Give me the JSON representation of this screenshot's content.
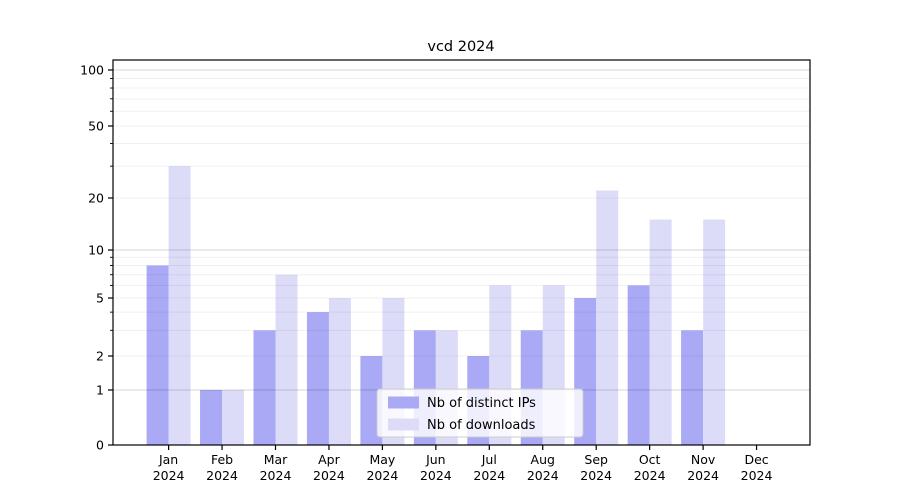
{
  "chart_data": {
    "type": "bar",
    "title": "vcd 2024",
    "categories": [
      {
        "line1": "Jan",
        "line2": "2024"
      },
      {
        "line1": "Feb",
        "line2": "2024"
      },
      {
        "line1": "Mar",
        "line2": "2024"
      },
      {
        "line1": "Apr",
        "line2": "2024"
      },
      {
        "line1": "May",
        "line2": "2024"
      },
      {
        "line1": "Jun",
        "line2": "2024"
      },
      {
        "line1": "Jul",
        "line2": "2024"
      },
      {
        "line1": "Aug",
        "line2": "2024"
      },
      {
        "line1": "Sep",
        "line2": "2024"
      },
      {
        "line1": "Oct",
        "line2": "2024"
      },
      {
        "line1": "Nov",
        "line2": "2024"
      },
      {
        "line1": "Dec",
        "line2": "2024"
      }
    ],
    "series": [
      {
        "name": "Nb of distinct IPs",
        "color": "#a9a9f6",
        "values": [
          8,
          1,
          3,
          4,
          2,
          3,
          2,
          3,
          5,
          6,
          3,
          0
        ]
      },
      {
        "name": "Nb of downloads",
        "color": "#dcdcf9",
        "values": [
          30,
          1,
          7,
          5,
          5,
          3,
          6,
          6,
          22,
          15,
          15,
          0
        ]
      }
    ],
    "yscale": "log above 1, linear 0-1",
    "yticks": [
      0,
      1,
      2,
      5,
      10,
      20,
      50,
      100
    ],
    "minor_gridlines": [
      2,
      3,
      4,
      5,
      6,
      7,
      8,
      9,
      20,
      30,
      40,
      50,
      60,
      70,
      80,
      90
    ],
    "major_gridlines": [
      1,
      10,
      100
    ],
    "ylim": [
      0,
      114
    ],
    "grid": true,
    "legend_position": "lower center",
    "colors": {
      "grid_major": "rgba(0,0,0,0.16)",
      "grid_minor": "rgba(0,0,0,0.06)",
      "axis": "#000000",
      "legend_border": "#cccccc",
      "legend_fill": "rgba(255,255,255,0.8)",
      "text": "#000000"
    }
  }
}
